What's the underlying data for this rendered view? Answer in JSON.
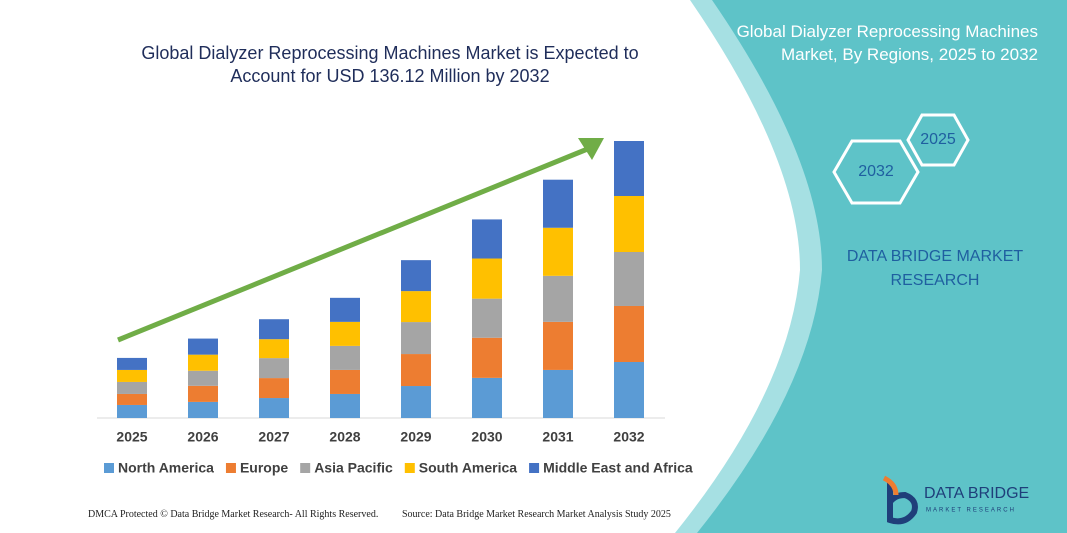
{
  "chart_data": {
    "type": "bar",
    "stacked": true,
    "title": "Global Dialyzer Reprocessing Machines Market is Expected to Account for USD 136.12 Million by 2032",
    "categories": [
      "2025",
      "2026",
      "2027",
      "2028",
      "2029",
      "2030",
      "2031",
      "2032"
    ],
    "series": [
      {
        "name": "North America",
        "color": "#5b9bd5",
        "values": [
          6.4,
          7.9,
          9.8,
          11.8,
          15.7,
          19.7,
          23.6,
          27.5
        ]
      },
      {
        "name": "Europe",
        "color": "#ed7d31",
        "values": [
          5.4,
          7.9,
          9.8,
          11.8,
          15.7,
          19.7,
          23.6,
          27.5
        ]
      },
      {
        "name": "Asia Pacific",
        "color": "#a5a5a5",
        "values": [
          5.9,
          7.4,
          9.8,
          11.8,
          15.7,
          19.2,
          22.6,
          26.5
        ]
      },
      {
        "name": "South America",
        "color": "#ffc000",
        "values": [
          5.9,
          7.9,
          9.3,
          11.8,
          15.2,
          19.7,
          23.6,
          27.5
        ]
      },
      {
        "name": "Middle East and Africa",
        "color": "#4472c4",
        "values": [
          5.9,
          7.9,
          9.8,
          11.8,
          15.2,
          19.2,
          23.6,
          27.0
        ]
      }
    ]
  },
  "panel": {
    "title": "Global Dialyzer Reprocessing Machines Market, By Regions, 2025 to 2032",
    "hex_small": "2025",
    "hex_large": "2032",
    "brand": "DATA BRIDGE MARKET RESEARCH"
  },
  "logo": {
    "name": "DATA BRIDGE",
    "tagline": "MARKET RESEARCH"
  },
  "footer": {
    "left": "DMCA Protected © Data Bridge Market Research- All Rights Reserved.",
    "right": "Source: Data Bridge Market Research Market Analysis Study 2025"
  }
}
